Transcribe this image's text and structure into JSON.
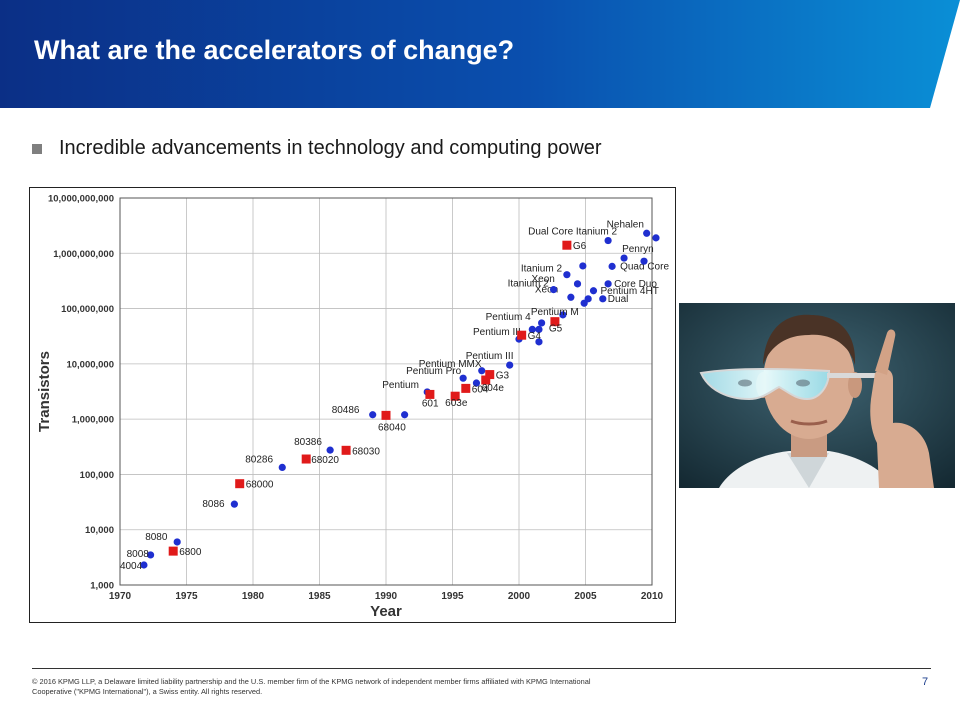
{
  "slide": {
    "title": "What are the accelerators of change?",
    "bullet": "Incredible advancements in technology and computing power",
    "footer": "© 2016 KPMG LLP, a Delaware limited liability partnership and the U.S. member firm of the KPMG network of independent member firms affiliated with KPMG International Cooperative (\"KPMG International\"), a Swiss entity. All rights reserved.",
    "page_number": "7",
    "colors": {
      "header_dark": "#0b2f86",
      "header_light": "#0a8fd6",
      "bullet": "#7f7f7f",
      "page_number": "#1a3c8c"
    }
  },
  "photo": {
    "icon": "man-wearing-smart-glasses-photo"
  },
  "chart_data": {
    "type": "scatter",
    "xlabel": "Year",
    "ylabel": "Transistors",
    "x_ticks": [
      1970,
      1975,
      1980,
      1985,
      1990,
      1995,
      2000,
      2005,
      2010
    ],
    "y_ticks": [
      1000,
      10000,
      100000,
      1000000,
      10000000,
      100000000,
      1000000000,
      10000000000
    ],
    "y_tick_labels": [
      "1,000",
      "10,000",
      "100,000",
      "1,000,000",
      "10,000,000",
      "100,000,000",
      "1,000,000,000",
      "10,000,000,000"
    ],
    "xlim": [
      1970,
      2010
    ],
    "ylim": [
      1000,
      10000000000
    ],
    "y_scale": "log",
    "grid": true,
    "series": [
      {
        "marker": "circle",
        "color": "#1f2fd0",
        "points": [
          {
            "label": "4004",
            "x": 1971.8,
            "y": 2300
          },
          {
            "label": "8008",
            "x": 1972.3,
            "y": 3500
          },
          {
            "label": "8080",
            "x": 1974.3,
            "y": 6000
          },
          {
            "label": "8086",
            "x": 1978.6,
            "y": 29000
          },
          {
            "label": "80286",
            "x": 1982.2,
            "y": 134000
          },
          {
            "label": "80386",
            "x": 1985.8,
            "y": 275000
          },
          {
            "label": "80486",
            "x": 1989.0,
            "y": 1200000
          },
          {
            "label": "",
            "x": 1991.4,
            "y": 1200000
          },
          {
            "label": "Pentium",
            "x": 1993.1,
            "y": 3100000
          },
          {
            "label": "Pentium Pro",
            "x": 1995.8,
            "y": 5500000
          },
          {
            "label": "Pentium MMX",
            "x": 1997.2,
            "y": 7500000
          },
          {
            "label": "",
            "x": 1996.8,
            "y": 4500000
          },
          {
            "label": "Pentium III",
            "x": 1999.3,
            "y": 9500000
          },
          {
            "label": "Pentium III",
            "x": 2000.0,
            "y": 28000000
          },
          {
            "label": "",
            "x": 2001.0,
            "y": 42000000
          },
          {
            "label": "",
            "x": 2001.5,
            "y": 42000000
          },
          {
            "label": "Pentium 4",
            "x": 2001.7,
            "y": 55000000
          },
          {
            "label": "",
            "x": 2001.5,
            "y": 25000000
          },
          {
            "label": "Pentium M",
            "x": 2003.3,
            "y": 77000000
          },
          {
            "label": "Xeon",
            "x": 2003.9,
            "y": 160000000
          },
          {
            "label": "Itanium 2",
            "x": 2002.6,
            "y": 220000000
          },
          {
            "label": "Itanium 2",
            "x": 2003.6,
            "y": 410000000
          },
          {
            "label": "Itanium 2",
            "x": 2004.8,
            "y": 590000000
          },
          {
            "label": "Xeon",
            "x": 2004.4,
            "y": 280000000
          },
          {
            "label": "",
            "x": 2004.9,
            "y": 125000000
          },
          {
            "label": "",
            "x": 2005.2,
            "y": 150000000
          },
          {
            "label": "Pentium 4HT",
            "x": 2005.6,
            "y": 210000000
          },
          {
            "label": "Dual",
            "x": 2006.3,
            "y": 150000000
          },
          {
            "label": "Core Duo",
            "x": 2006.7,
            "y": 280000000
          },
          {
            "label": "Quad Core",
            "x": 2007.0,
            "y": 580000000
          },
          {
            "label": "Dual Core Itanium 2",
            "x": 2006.7,
            "y": 1700000000
          },
          {
            "label": "Penryn",
            "x": 2007.9,
            "y": 820000000
          },
          {
            "label": "",
            "x": 2009.4,
            "y": 720000000
          },
          {
            "label": "Nehalen",
            "x": 2009.6,
            "y": 2300000000
          },
          {
            "label": "",
            "x": 2010.3,
            "y": 1900000000
          }
        ]
      },
      {
        "marker": "square",
        "color": "#e01a1a",
        "points": [
          {
            "label": "6800",
            "x": 1974.0,
            "y": 4100
          },
          {
            "label": "68000",
            "x": 1979.0,
            "y": 68000
          },
          {
            "label": "68020",
            "x": 1984.0,
            "y": 190000
          },
          {
            "label": "68030",
            "x": 1987.0,
            "y": 273000
          },
          {
            "label": "68040",
            "x": 1990.0,
            "y": 1170000
          },
          {
            "label": "601",
            "x": 1993.3,
            "y": 2800000
          },
          {
            "label": "603e",
            "x": 1995.2,
            "y": 2600000
          },
          {
            "label": "604",
            "x": 1996.0,
            "y": 3600000
          },
          {
            "label": "604e",
            "x": 1997.5,
            "y": 5100000
          },
          {
            "label": "G3",
            "x": 1997.8,
            "y": 6400000
          },
          {
            "label": "G4",
            "x": 2000.2,
            "y": 33000000
          },
          {
            "label": "G5",
            "x": 2002.7,
            "y": 58000000
          },
          {
            "label": "G6",
            "x": 2003.6,
            "y": 1400000000
          }
        ]
      }
    ]
  }
}
